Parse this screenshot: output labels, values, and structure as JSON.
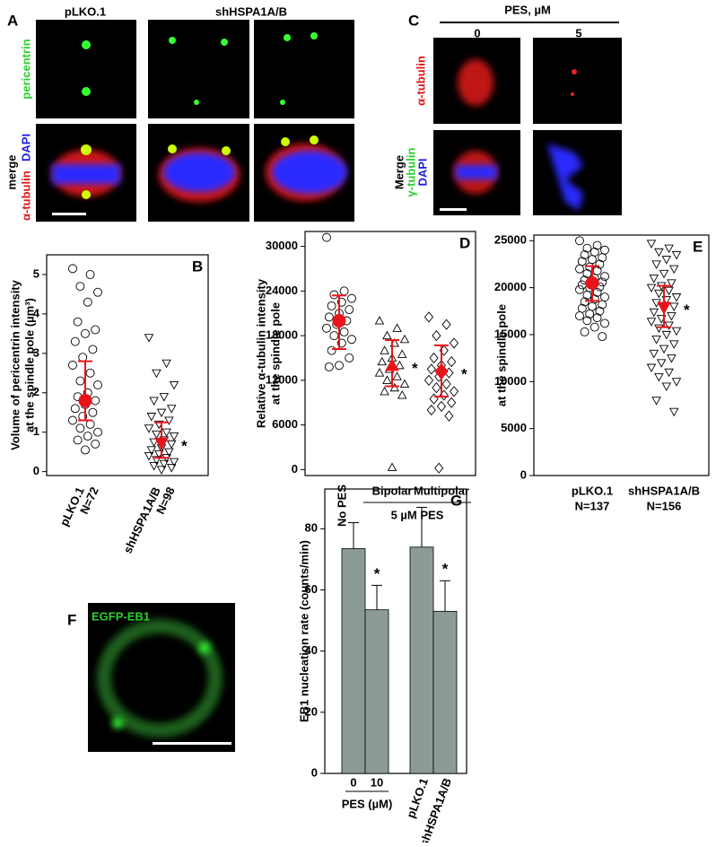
{
  "panel_a": {
    "letter": "A",
    "col1": "pLKO.1",
    "col2": "shHSPA1A/B",
    "stain1": "pericentrin",
    "merge": "merge",
    "stain2": "α-tubulin",
    "stain3": "DAPI"
  },
  "panel_c": {
    "letter": "C",
    "header": "PES, µM",
    "dose0": "0",
    "dose5": "5",
    "stain1": "α-tubulin",
    "merge": "Merge",
    "stain2": "γ-tubulin",
    "stain3": "DAPI"
  },
  "panel_f": {
    "letter": "F",
    "stain": "EGFP-EB1"
  },
  "chart_data": [
    {
      "type": "strip",
      "label": "B",
      "ylabel": [
        "Volume of pericentrin intensity",
        "at the spindle pole (µm³)"
      ],
      "categories": [
        "pLKO.1",
        "shHSPA1A/B"
      ],
      "n_labels": [
        "N=72",
        "N=98"
      ],
      "ylim": [
        -0.1,
        5.5
      ],
      "yticks": [
        0,
        1,
        2,
        3,
        4,
        5
      ],
      "mean_color": "#e8141a",
      "series": [
        {
          "marker": "circle",
          "values": [
            5.15,
            5.0,
            4.7,
            4.55,
            4.3,
            3.8,
            3.6,
            3.5,
            3.3,
            3.1,
            2.9,
            2.7,
            2.5,
            2.3,
            2.2,
            2.0,
            1.9,
            1.8,
            1.7,
            1.6,
            1.5,
            1.4,
            1.3,
            1.2,
            1.1,
            1.0,
            0.9,
            0.8,
            0.7,
            0.55
          ],
          "mean": 1.8,
          "err": [
            1.3,
            2.8
          ]
        },
        {
          "marker": "triangle-down",
          "values": [
            3.4,
            2.75,
            2.5,
            2.2,
            1.9,
            1.8,
            1.6,
            1.5,
            1.4,
            1.3,
            1.2,
            1.1,
            1.0,
            0.95,
            0.9,
            0.8,
            0.75,
            0.7,
            0.6,
            0.55,
            0.5,
            0.45,
            0.4,
            0.35,
            0.3,
            0.25,
            0.2,
            0.15,
            0.1,
            0.05
          ],
          "mean": 0.72,
          "err": [
            0.35,
            1.25
          ]
        }
      ],
      "annotations": [
        "*"
      ]
    },
    {
      "type": "strip",
      "label": "D",
      "ylabel": [
        "Relative α-tubulin intensity",
        "at the spindle pole"
      ],
      "categories": [
        "No PES",
        "Bipolar",
        "Multipolar"
      ],
      "group_label": "5 µM PES",
      "ylim": [
        -800,
        32000
      ],
      "yticks": [
        0,
        6000,
        12000,
        18000,
        24000,
        30000
      ],
      "mean_color": "#e8141a",
      "series": [
        {
          "marker": "circle",
          "values": [
            31200,
            24000,
            23500,
            23000,
            22500,
            22000,
            21500,
            21000,
            20500,
            20000,
            19500,
            19000,
            18500,
            18000,
            17500,
            17000,
            16000,
            15000,
            14000,
            13800
          ],
          "mean": 20000,
          "err": [
            16200,
            23400
          ]
        },
        {
          "marker": "triangle-up",
          "values": [
            20000,
            19000,
            18000,
            17500,
            17000,
            16000,
            15500,
            15000,
            14500,
            14000,
            13500,
            13000,
            12500,
            12000,
            11500,
            11000,
            10500,
            10000,
            300
          ],
          "mean": 14000,
          "err": [
            11200,
            17400
          ]
        },
        {
          "marker": "diamond",
          "values": [
            20500,
            19500,
            18000,
            17000,
            16000,
            15000,
            14500,
            14000,
            13500,
            13000,
            12500,
            12000,
            11500,
            11000,
            10500,
            10000,
            9500,
            9000,
            8500,
            8000,
            7200,
            200
          ],
          "mean": 13200,
          "err": [
            9800,
            16700
          ]
        }
      ],
      "annotations": [
        "*",
        "*"
      ]
    },
    {
      "type": "strip",
      "label": "E",
      "ylabel": [
        "at the spindle pole"
      ],
      "categories": [
        "pLKO.1",
        "shHSPA1A/B"
      ],
      "n_labels": [
        "N=137",
        "N=156"
      ],
      "ylim": [
        0,
        25600
      ],
      "yticks": [
        0,
        5000,
        10000,
        15000,
        20000,
        25000
      ],
      "mean_color": "#e8141a",
      "series": [
        {
          "marker": "circle",
          "values": [
            25000,
            24500,
            24200,
            24000,
            23800,
            23500,
            23200,
            23000,
            22800,
            22500,
            22200,
            22000,
            21800,
            21500,
            21200,
            21000,
            20800,
            20600,
            20500,
            20300,
            20100,
            20000,
            19800,
            19500,
            19200,
            19000,
            18800,
            18500,
            18200,
            18000,
            17800,
            17500,
            17200,
            17000,
            16800,
            16500,
            16200,
            15800,
            15300,
            14800
          ],
          "mean": 20500,
          "err": [
            18600,
            22300
          ]
        },
        {
          "marker": "triangle-down",
          "values": [
            24700,
            24200,
            23800,
            23500,
            23000,
            22500,
            22000,
            21500,
            21000,
            20500,
            20200,
            20000,
            19700,
            19400,
            19000,
            18700,
            18400,
            18000,
            17700,
            17400,
            17000,
            16700,
            16400,
            16000,
            15700,
            15400,
            15000,
            14500,
            14000,
            13500,
            13000,
            12500,
            12000,
            11500,
            11000,
            10500,
            10000,
            9500,
            8000,
            6800
          ],
          "mean": 17900,
          "err": [
            15800,
            20200
          ]
        }
      ],
      "annotations": [
        "*"
      ]
    },
    {
      "type": "bar",
      "label": "G",
      "ylabel": [
        "EB1 nucleation rate (counts/min)"
      ],
      "categories": [
        "0",
        "10",
        "pLKO.1",
        "shHSPA1A/B"
      ],
      "group_label": "PES (µM)",
      "values": [
        73.5,
        53.5,
        74,
        53
      ],
      "errors": [
        8.5,
        8,
        13,
        10
      ],
      "color": "#8c9c94",
      "ylim": [
        0,
        93
      ],
      "yticks": [
        0,
        20,
        40,
        60,
        80
      ],
      "annotations": [
        "*",
        "*"
      ]
    }
  ]
}
